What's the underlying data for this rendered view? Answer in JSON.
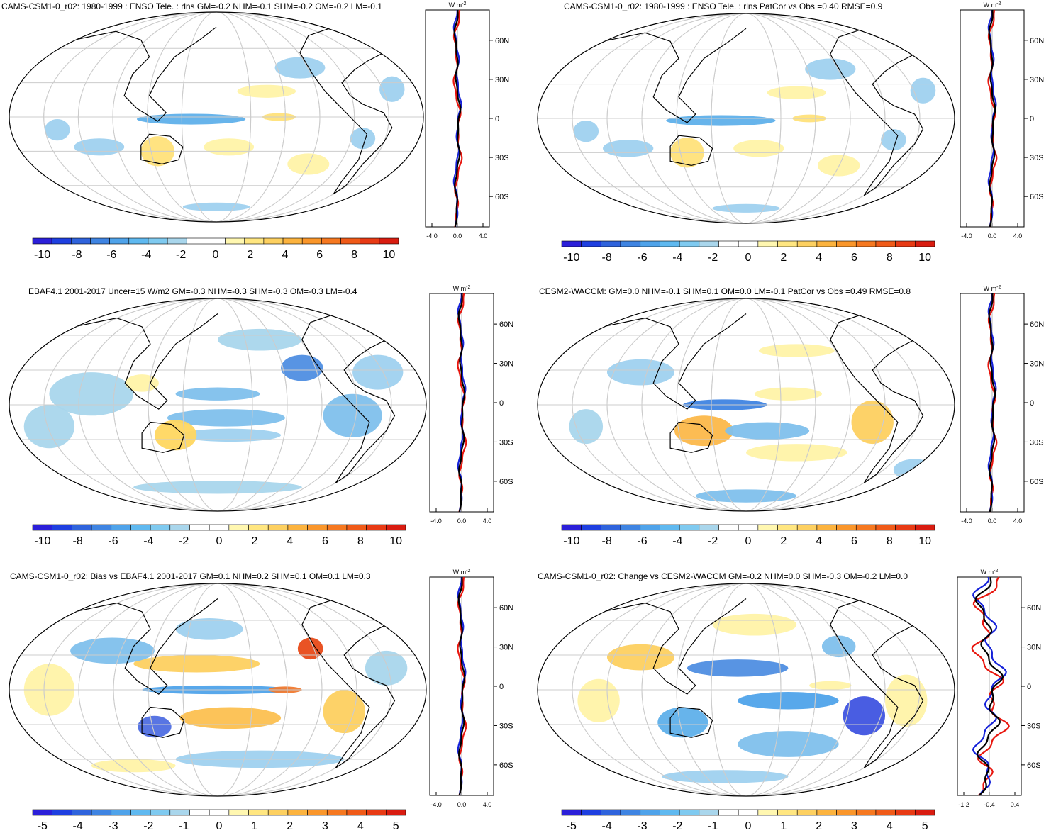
{
  "panels": [
    {
      "title": "CAMS-CSM1-0_r02: 1980-1999 : ENSO Tele. : rlns GM=-0.2 NHM=-0.1 SHM=-0.2 OM=-0.2 LM=-0.1",
      "colorbar_labels": [
        "-10",
        "-8",
        "-6",
        "-4",
        "-2",
        "0",
        "2",
        "4",
        "6",
        "8",
        "10"
      ],
      "zonal_unit": "W m",
      "zonal_unit_sup": "-2",
      "zonal_lat_labels": [
        "60N",
        "30N",
        "0",
        "30S",
        "60S"
      ],
      "zonal_x_labels": [
        "-4.0",
        "0.0",
        "4.0"
      ]
    },
    {
      "title": "CAMS-CSM1-0_r02: 1980-1999 : ENSO Tele. : rlns PatCor vs Obs =0.40 RMSE=0.9",
      "colorbar_labels": [
        "-10",
        "-8",
        "-6",
        "-4",
        "-2",
        "0",
        "2",
        "4",
        "6",
        "8",
        "10"
      ],
      "zonal_unit": "W m",
      "zonal_unit_sup": "-2",
      "zonal_lat_labels": [
        "60N",
        "30N",
        "0",
        "30S",
        "60S"
      ],
      "zonal_x_labels": [
        "-4.0",
        "0.0",
        "4.0"
      ]
    },
    {
      "title": "EBAF4.1 2001-2017 Uncer=15 W/m2 GM=-0.3 NHM=-0.3 SHM=-0.3 OM=-0.3 LM=-0.4",
      "colorbar_labels": [
        "-10",
        "-8",
        "-6",
        "-4",
        "-2",
        "0",
        "2",
        "4",
        "6",
        "8",
        "10"
      ],
      "zonal_unit": "W m",
      "zonal_unit_sup": "-2",
      "zonal_lat_labels": [
        "60N",
        "30N",
        "0",
        "30S",
        "60S"
      ],
      "zonal_x_labels": [
        "-4.0",
        "0.0",
        "4.0"
      ]
    },
    {
      "title": "CESM2-WACCM: GM=0.0 NHM=-0.1 SHM=0.1 OM=0.0 LM=-0.1 PatCor vs Obs =0.49 RMSE=0.8",
      "colorbar_labels": [
        "-10",
        "-8",
        "-6",
        "-4",
        "-2",
        "0",
        "2",
        "4",
        "6",
        "8",
        "10"
      ],
      "zonal_unit": "W m",
      "zonal_unit_sup": "-2",
      "zonal_lat_labels": [
        "60N",
        "30N",
        "0",
        "30S",
        "60S"
      ],
      "zonal_x_labels": [
        "-4.0",
        "0.0",
        "4.0"
      ]
    },
    {
      "title": "CAMS-CSM1-0_r02: Bias vs EBAF4.1 2001-2017 GM=0.1 NHM=0.2 SHM=0.1 OM=0.1 LM=0.3",
      "colorbar_labels": [
        "-5",
        "-4",
        "-3",
        "-2",
        "-1",
        "0",
        "1",
        "2",
        "3",
        "4",
        "5"
      ],
      "zonal_unit": "W m",
      "zonal_unit_sup": "-2",
      "zonal_lat_labels": [
        "60N",
        "30N",
        "0",
        "30S",
        "60S"
      ],
      "zonal_x_labels": [
        "-4.0",
        "0.0",
        "4.0"
      ]
    },
    {
      "title": "CAMS-CSM1-0_r02: Change vs CESM2-WACCM GM=-0.2 NHM=0.0 SHM=-0.3 OM=-0.2 LM=0.0",
      "colorbar_labels": [
        "-5",
        "-4",
        "-3",
        "-2",
        "-1",
        "0",
        "1",
        "2",
        "3",
        "4",
        "5"
      ],
      "zonal_unit": "W m",
      "zonal_unit_sup": "-2",
      "zonal_lat_labels": [
        "60N",
        "30N",
        "0",
        "30S",
        "60S"
      ],
      "zonal_x_labels": [
        "-1.2",
        "-0.4",
        "0.4"
      ]
    }
  ],
  "colors": {
    "colorbar": [
      "#2b1fd9",
      "#1e3fe0",
      "#2f63dc",
      "#3f84e2",
      "#4fa3ea",
      "#5fb9f0",
      "#7fcaf0",
      "#a9d6ec",
      "#ffffff",
      "#ffffff",
      "#fff7b0",
      "#ffe680",
      "#fdd060",
      "#fcb33e",
      "#fa962a",
      "#f67820",
      "#f05a18",
      "#e83a14",
      "#d91c10"
    ],
    "land": "#000000",
    "grid": "#cccccc",
    "model_line": "#e8160e",
    "obs_line": "#1522d9",
    "mean_line": "#000000"
  }
}
